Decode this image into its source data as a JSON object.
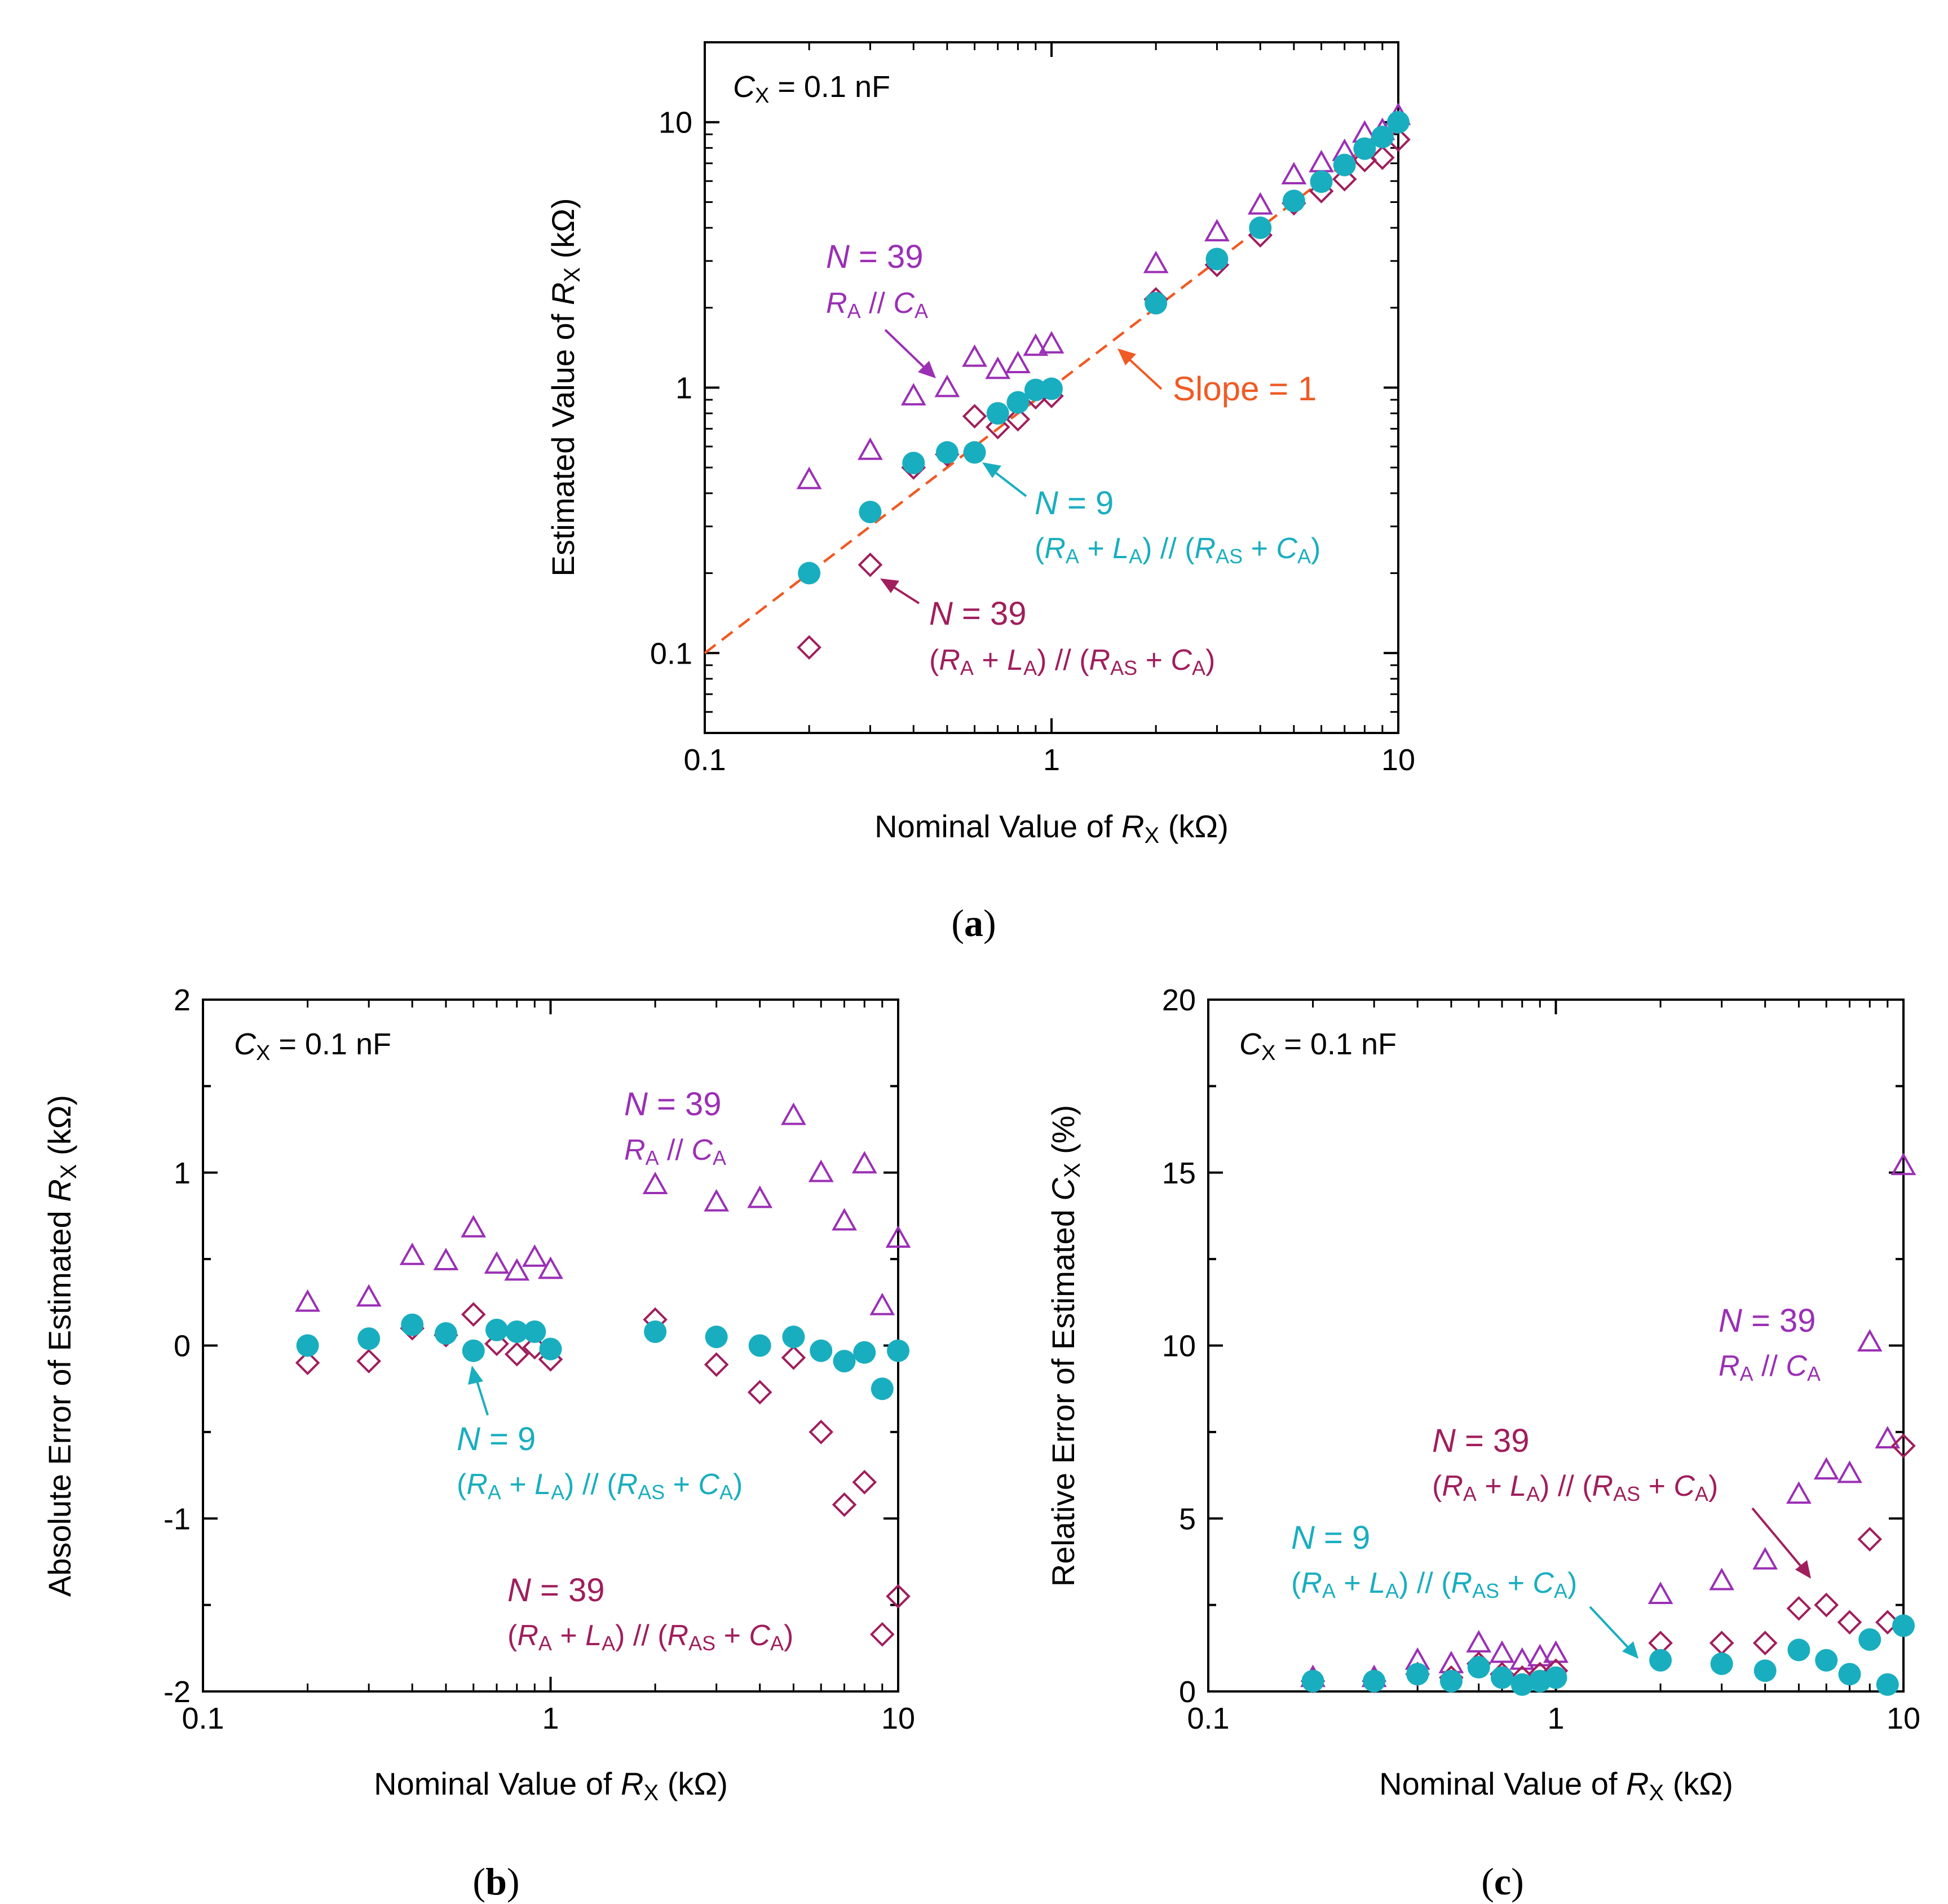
{
  "colors": {
    "purple": "#9b2fb5",
    "magenta": "#a01e5c",
    "teal": "#19aebf",
    "orange": "#f05a23",
    "axis": "#000000"
  },
  "chart_data": [
    {
      "id": "a",
      "type": "scatter",
      "caption": "(a)",
      "xscale": "log",
      "yscale": "log",
      "xlim": [
        0.1,
        10
      ],
      "ylim": [
        0.05,
        20
      ],
      "xlabel": "Nominal Value of RX (kΩ)",
      "ylabel": "Estimated Value of RX (kΩ)",
      "xticks": [
        {
          "v": 0.1,
          "label": "0.1"
        },
        {
          "v": 1,
          "label": "1"
        },
        {
          "v": 10,
          "label": "10"
        }
      ],
      "yticks": [
        {
          "v": 0.1,
          "label": "0.1"
        },
        {
          "v": 1,
          "label": "1"
        },
        {
          "v": 10,
          "label": "10"
        }
      ],
      "condition": "CX = 0.1 nF",
      "reference_line": {
        "label": "Slope = 1",
        "slope": 1,
        "x": [
          0.1,
          10
        ],
        "y": [
          0.1,
          10
        ]
      },
      "x": [
        0.2,
        0.3,
        0.4,
        0.5,
        0.6,
        0.7,
        0.8,
        0.9,
        1,
        2,
        3,
        4,
        5,
        6,
        7,
        8,
        9,
        10
      ],
      "series": [
        {
          "key": "tri",
          "name": "N = 39, RA // CA",
          "marker": "triangle",
          "color": "purple",
          "values": [
            0.45,
            0.58,
            0.93,
            1.0,
            1.3,
            1.17,
            1.23,
            1.43,
            1.46,
            2.93,
            3.86,
            4.87,
            6.33,
            7.03,
            7.75,
            9.09,
            9.3,
            10.6
          ]
        },
        {
          "key": "dia",
          "name": "N = 39, (RA + LA) // (RAS + CA)",
          "marker": "diamond",
          "color": "magenta",
          "values": [
            0.105,
            0.215,
            0.5,
            0.56,
            0.78,
            0.71,
            0.76,
            0.92,
            0.93,
            2.15,
            2.9,
            3.75,
            4.95,
            5.5,
            6.1,
            7.2,
            7.35,
            8.6
          ]
        },
        {
          "key": "cir",
          "name": "N = 9, (RA + LA) // (RAS + CA)",
          "marker": "circle",
          "color": "teal",
          "values": [
            0.2,
            0.34,
            0.52,
            0.57,
            0.57,
            0.8,
            0.88,
            0.98,
            0.99,
            2.08,
            3.05,
            4.0,
            5.05,
            5.97,
            6.9,
            7.95,
            8.8,
            10.0
          ]
        }
      ],
      "annotations": [
        {
          "key": "tri",
          "l1": "N = 39",
          "l2": "RA // CA"
        },
        {
          "key": "cir",
          "l1": "N = 9",
          "l2": "(RA + LA) // (RAS + CA)"
        },
        {
          "key": "dia",
          "l1": "N = 39",
          "l2": "(RA + LA) // (RAS + CA)"
        }
      ]
    },
    {
      "id": "b",
      "type": "scatter",
      "caption": "(b)",
      "xscale": "log",
      "yscale": "linear",
      "xlim": [
        0.1,
        10
      ],
      "ylim": [
        -2,
        2
      ],
      "xlabel": "Nominal Value of RX (kΩ)",
      "ylabel": "Absolute Error of Estimated RX (kΩ)",
      "xticks": [
        {
          "v": 0.1,
          "label": "0.1"
        },
        {
          "v": 1,
          "label": "1"
        },
        {
          "v": 10,
          "label": "10"
        }
      ],
      "yticks": [
        {
          "v": 2,
          "label": "2"
        },
        {
          "v": 1,
          "label": "1"
        },
        {
          "v": 0,
          "label": "0"
        },
        {
          "v": -1,
          "label": "-1"
        },
        {
          "v": -2,
          "label": "-2"
        }
      ],
      "condition": "CX = 0.1 nF",
      "x": [
        0.2,
        0.3,
        0.4,
        0.5,
        0.6,
        0.7,
        0.8,
        0.9,
        1,
        2,
        3,
        4,
        5,
        6,
        7,
        8,
        9,
        10
      ],
      "series": [
        {
          "key": "tri",
          "name": "N = 39, RA // CA",
          "marker": "triangle",
          "color": "purple",
          "values": [
            0.25,
            0.28,
            0.52,
            0.49,
            0.68,
            0.47,
            0.43,
            0.51,
            0.44,
            0.93,
            0.83,
            0.85,
            1.33,
            1.0,
            0.72,
            1.05,
            0.23,
            0.62
          ]
        },
        {
          "key": "dia",
          "name": "N = 39, (RA + LA) // (RAS + CA)",
          "marker": "diamond",
          "color": "magenta",
          "values": [
            -0.1,
            -0.09,
            0.1,
            0.06,
            0.18,
            0.01,
            -0.05,
            -0.01,
            -0.08,
            0.15,
            -0.11,
            -0.27,
            -0.07,
            -0.5,
            -0.92,
            -0.79,
            -1.67,
            -1.45
          ]
        },
        {
          "key": "cir",
          "name": "N = 9, (RA + LA) // (RAS + CA)",
          "marker": "circle",
          "color": "teal",
          "values": [
            0.0,
            0.04,
            0.12,
            0.07,
            -0.03,
            0.09,
            0.08,
            0.08,
            -0.02,
            0.08,
            0.05,
            0.0,
            0.05,
            -0.03,
            -0.09,
            -0.04,
            -0.25,
            -0.03
          ]
        }
      ],
      "annotations": [
        {
          "key": "tri",
          "l1": "N = 39",
          "l2": "RA // CA"
        },
        {
          "key": "cir",
          "l1": "N = 9",
          "l2": "(RA + LA) // (RAS + CA)"
        },
        {
          "key": "dia",
          "l1": "N = 39",
          "l2": "(RA + LA) // (RAS + CA)"
        }
      ]
    },
    {
      "id": "c",
      "type": "scatter",
      "caption": "(c)",
      "xscale": "log",
      "yscale": "linear",
      "xlim": [
        0.1,
        10
      ],
      "ylim": [
        0,
        20
      ],
      "xlabel": "Nominal Value of RX (kΩ)",
      "ylabel": "Relative Error of Estimated CX (%)",
      "xticks": [
        {
          "v": 0.1,
          "label": "0.1"
        },
        {
          "v": 1,
          "label": "1"
        },
        {
          "v": 10,
          "label": "10"
        }
      ],
      "yticks": [
        {
          "v": 20,
          "label": "20"
        },
        {
          "v": 15,
          "label": "15"
        },
        {
          "v": 10,
          "label": "10"
        },
        {
          "v": 5,
          "label": "5"
        },
        {
          "v": 0,
          "label": "0"
        }
      ],
      "condition": "CX = 0.1 nF",
      "x": [
        0.2,
        0.3,
        0.4,
        0.5,
        0.6,
        0.7,
        0.8,
        0.9,
        1,
        2,
        3,
        4,
        5,
        6,
        7,
        8,
        9,
        10
      ],
      "series": [
        {
          "key": "tri",
          "name": "N = 39, RA // CA",
          "marker": "triangle",
          "color": "purple",
          "values": [
            0.4,
            0.4,
            0.9,
            0.8,
            1.4,
            1.1,
            0.9,
            1.0,
            1.1,
            2.8,
            3.2,
            3.8,
            5.7,
            6.4,
            6.3,
            10.1,
            7.3,
            15.2
          ]
        },
        {
          "key": "dia",
          "name": "N = 39, (RA + LA) // (RAS + CA)",
          "marker": "diamond",
          "color": "magenta",
          "values": [
            0.3,
            0.3,
            0.5,
            0.4,
            0.8,
            0.5,
            0.4,
            0.5,
            0.6,
            1.4,
            1.4,
            1.4,
            2.4,
            2.5,
            2.0,
            4.4,
            2.0,
            7.1
          ]
        },
        {
          "key": "cir",
          "name": "N = 9, (RA + LA) // (RAS + CA)",
          "marker": "circle",
          "color": "teal",
          "values": [
            0.3,
            0.3,
            0.5,
            0.3,
            0.7,
            0.4,
            0.2,
            0.3,
            0.4,
            0.9,
            0.8,
            0.6,
            1.2,
            0.9,
            0.5,
            1.5,
            0.2,
            1.9
          ]
        }
      ],
      "annotations": [
        {
          "key": "tri",
          "l1": "N = 39",
          "l2": "RA // CA"
        },
        {
          "key": "dia",
          "l1": "N = 39",
          "l2": "(RA + LA) // (RAS + CA)"
        },
        {
          "key": "cir",
          "l1": "N = 9",
          "l2": "(RA + LA) // (RAS + CA)"
        }
      ]
    }
  ]
}
